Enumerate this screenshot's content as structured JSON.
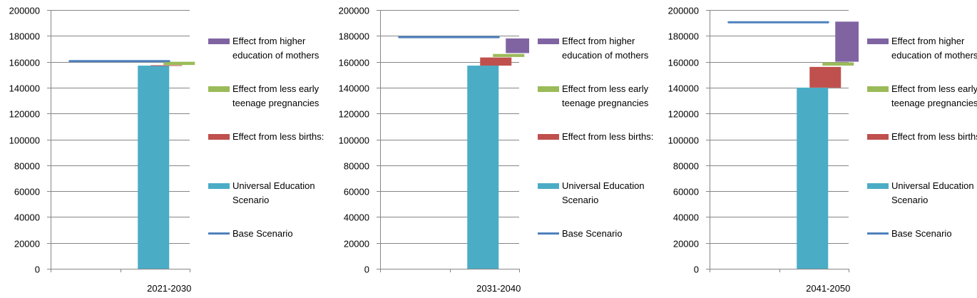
{
  "colors": {
    "universal": "#4bacc6",
    "births": "#c0504d",
    "teen": "#9bbb59",
    "mothers": "#8064a2",
    "base": "#4f81bd",
    "grid": "#868686",
    "axis": "#868686"
  },
  "legend": [
    {
      "key": "mothers",
      "label": "Effect from higher education of mothers",
      "type": "bar"
    },
    {
      "key": "teen",
      "label": "Effect from less early teenage pregnancies",
      "type": "bar"
    },
    {
      "key": "births",
      "label": "Effect from less births:",
      "type": "bar"
    },
    {
      "key": "universal",
      "label": "Universal Education Scenario",
      "type": "bar"
    },
    {
      "key": "base",
      "label": "Base Scenario",
      "type": "line"
    }
  ],
  "chart_data": [
    {
      "type": "bar",
      "subtype": "waterfall",
      "categories": [
        "",
        "2021-2030"
      ],
      "ylim": [
        0,
        200000
      ],
      "yticks": [
        "0",
        "20000",
        "40000",
        "60000",
        "80000",
        "100000",
        "120000",
        "140000",
        "160000",
        "180000",
        "200000"
      ],
      "grid": true,
      "legend_position": "right",
      "base_scenario": 160500,
      "universal_education_scenario": 157000,
      "effect_less_births": [
        157000,
        157300
      ],
      "effect_less_teen_pregnancies": [
        157500,
        160000
      ],
      "effect_higher_education_mothers": null
    },
    {
      "type": "bar",
      "subtype": "waterfall",
      "categories": [
        "",
        "2031-2040"
      ],
      "ylim": [
        0,
        200000
      ],
      "yticks": [
        "0",
        "20000",
        "40000",
        "60000",
        "80000",
        "100000",
        "120000",
        "140000",
        "160000",
        "180000",
        "200000"
      ],
      "grid": true,
      "legend_position": "right",
      "base_scenario": 179000,
      "universal_education_scenario": 157000,
      "effect_less_births": [
        157000,
        163300
      ],
      "effect_less_teen_pregnancies": [
        163700,
        166000
      ],
      "effect_higher_education_mothers": [
        166700,
        178000
      ]
    },
    {
      "type": "bar",
      "subtype": "waterfall",
      "categories": [
        "",
        "2041-2050"
      ],
      "ylim": [
        0,
        200000
      ],
      "yticks": [
        "0",
        "20000",
        "40000",
        "60000",
        "80000",
        "100000",
        "120000",
        "140000",
        "160000",
        "180000",
        "200000"
      ],
      "grid": true,
      "legend_position": "right",
      "base_scenario": 190500,
      "universal_education_scenario": 140000,
      "effect_less_births": [
        140000,
        156000
      ],
      "effect_less_teen_pregnancies": [
        157000,
        159500
      ],
      "effect_higher_education_mothers": [
        160000,
        191000
      ]
    }
  ]
}
